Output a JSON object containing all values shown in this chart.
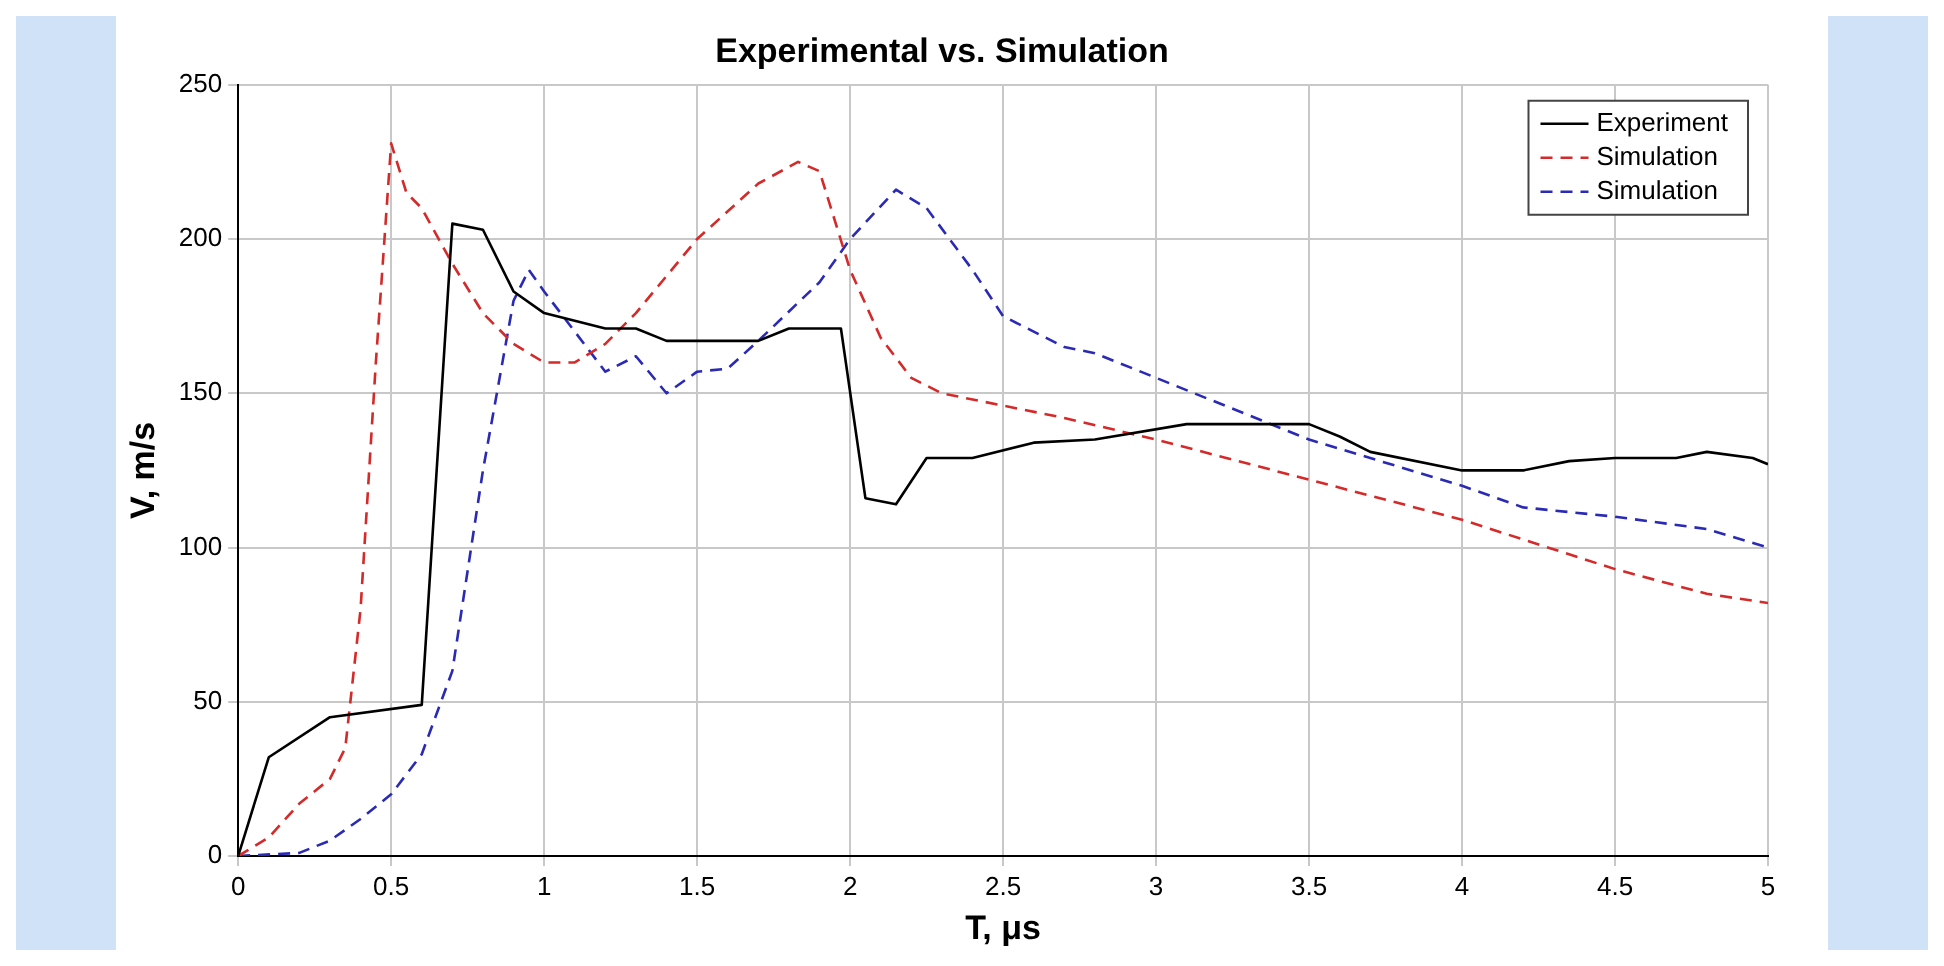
{
  "chart_data": {
    "type": "line",
    "title": "Experimental vs. Simulation",
    "xlabel": "T, μs",
    "ylabel": "V, m/s",
    "xlim": [
      0,
      5
    ],
    "xticks": [
      0,
      0.5,
      1,
      1.5,
      2,
      2.5,
      3,
      3.5,
      4,
      4.5,
      5
    ],
    "ylim": [
      0,
      250
    ],
    "yticks": [
      0,
      50,
      100,
      150,
      200,
      250
    ],
    "grid": true,
    "legend": "top right",
    "marker": "none",
    "series": [
      {
        "name": "Experiment",
        "color": "#000000",
        "line_style": "solid",
        "x": [
          0,
          0.1,
          0.3,
          0.6,
          0.7,
          0.8,
          0.9,
          1,
          1.2,
          1.3,
          1.4,
          1.7,
          1.8,
          1.97,
          2.05,
          2.15,
          2.25,
          2.4,
          2.6,
          2.8,
          3.1,
          3.5,
          3.6,
          3.7,
          4,
          4.2,
          4.35,
          4.5,
          4.7,
          4.8,
          4.95,
          5
        ],
        "values": [
          0,
          32,
          45,
          49,
          205,
          203,
          183,
          176,
          171,
          171,
          167,
          167,
          171,
          171,
          116,
          114,
          129,
          129,
          134,
          135,
          140,
          140,
          136,
          131,
          125,
          125,
          128,
          129,
          129,
          131,
          129,
          127
        ]
      },
      {
        "name": "Simulation",
        "color": "#d42a2a",
        "line_style": "dashed",
        "x": [
          0,
          0.1,
          0.2,
          0.3,
          0.35,
          0.4,
          0.45,
          0.5,
          0.55,
          0.6,
          0.7,
          0.8,
          0.9,
          1,
          1.1,
          1.2,
          1.3,
          1.5,
          1.7,
          1.83,
          1.9,
          2,
          2.1,
          2.2,
          2.3,
          2.5,
          2.7,
          3,
          3.5,
          4,
          4.5,
          4.8,
          5
        ],
        "values": [
          0,
          6,
          17,
          25,
          35,
          80,
          160,
          231,
          215,
          210,
          192,
          176,
          166,
          160,
          160,
          166,
          176,
          200,
          218,
          225,
          222,
          190,
          168,
          155,
          150,
          146,
          142,
          135,
          122,
          109,
          93,
          85,
          82
        ]
      },
      {
        "name": "Simulation",
        "color": "#2a2ab4",
        "line_style": "dashed",
        "x": [
          0,
          0.2,
          0.3,
          0.4,
          0.5,
          0.6,
          0.7,
          0.8,
          0.9,
          0.95,
          1,
          1.1,
          1.2,
          1.3,
          1.4,
          1.5,
          1.6,
          1.7,
          1.9,
          2,
          2.15,
          2.25,
          2.4,
          2.5,
          2.6,
          2.7,
          2.8,
          3,
          3.3,
          3.5,
          3.7,
          4,
          4.2,
          4.5,
          4.8,
          5
        ],
        "values": [
          0,
          1,
          5,
          12,
          20,
          33,
          60,
          125,
          180,
          190,
          183,
          170,
          157,
          162,
          150,
          157,
          158,
          167,
          186,
          200,
          216,
          210,
          190,
          175,
          170,
          165,
          163,
          155,
          143,
          135,
          129,
          120,
          113,
          110,
          106,
          100
        ]
      }
    ]
  }
}
